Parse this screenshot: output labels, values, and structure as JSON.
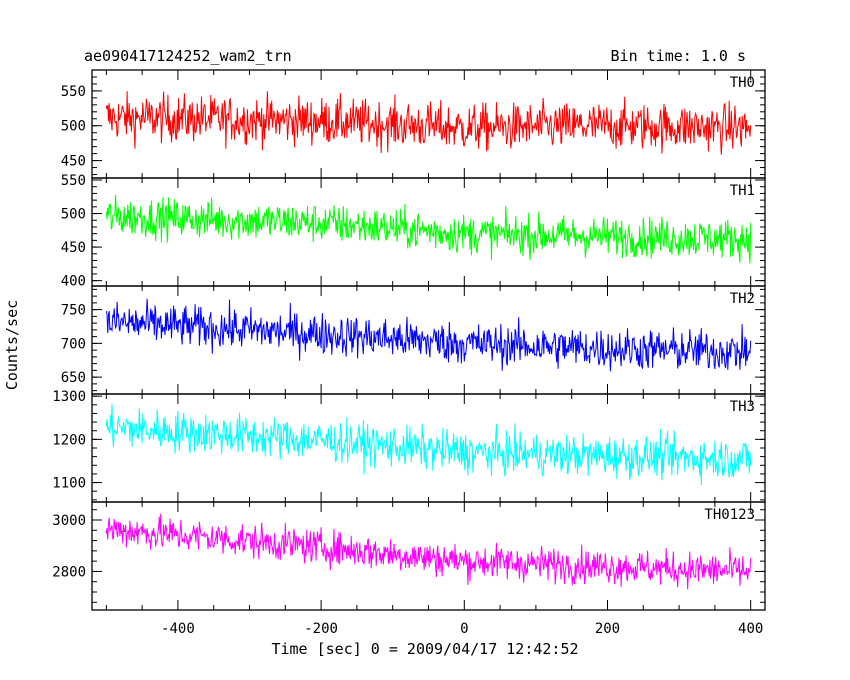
{
  "chart_data": {
    "type": "line",
    "title": "ae090417124252_wam2_trn",
    "subtitle": "Bin time: 1.0 s",
    "xlabel": "Time [sec] 0 = 2009/04/17 12:42:52",
    "ylabel": "Counts/sec",
    "xlim": [
      -520,
      420
    ],
    "xticks": [
      -400,
      -200,
      0,
      200,
      400
    ],
    "x_range": [
      -500,
      400
    ],
    "grid": false,
    "panels": [
      {
        "name": "TH0",
        "color": "#ff0000",
        "ylim": [
          425,
          580
        ],
        "yticks": [
          450,
          500,
          550
        ],
        "trend": [
          [
            -500,
            512
          ],
          [
            -200,
            507
          ],
          [
            0,
            497
          ],
          [
            200,
            500
          ],
          [
            400,
            497
          ]
        ],
        "noise": 24
      },
      {
        "name": "TH1",
        "color": "#00ff00",
        "ylim": [
          392,
          553
        ],
        "yticks": [
          400,
          450,
          500,
          550
        ],
        "trend": [
          [
            -500,
            496
          ],
          [
            -200,
            486
          ],
          [
            0,
            470
          ],
          [
            200,
            466
          ],
          [
            400,
            462
          ]
        ],
        "noise": 21
      },
      {
        "name": "TH2",
        "color": "#0000ff",
        "ylim": [
          625,
          785
        ],
        "yticks": [
          650,
          700,
          750
        ],
        "trend": [
          [
            -500,
            732
          ],
          [
            -200,
            714
          ],
          [
            0,
            700
          ],
          [
            200,
            692
          ],
          [
            400,
            688
          ]
        ],
        "noise": 22
      },
      {
        "name": "TH3",
        "color": "#00ffff",
        "ylim": [
          1055,
          1305
        ],
        "yticks": [
          1100,
          1200,
          1300
        ],
        "trend": [
          [
            -500,
            1228
          ],
          [
            -200,
            1198
          ],
          [
            0,
            1170
          ],
          [
            200,
            1162
          ],
          [
            400,
            1155
          ]
        ],
        "noise": 34
      },
      {
        "name": "TH0123",
        "color": "#ff00ff",
        "ylim": [
          2650,
          3070
        ],
        "yticks": [
          2800,
          3000
        ],
        "trend": [
          [
            -500,
            2965
          ],
          [
            -200,
            2895
          ],
          [
            0,
            2840
          ],
          [
            200,
            2820
          ],
          [
            400,
            2800
          ]
        ],
        "noise": 48
      }
    ]
  }
}
